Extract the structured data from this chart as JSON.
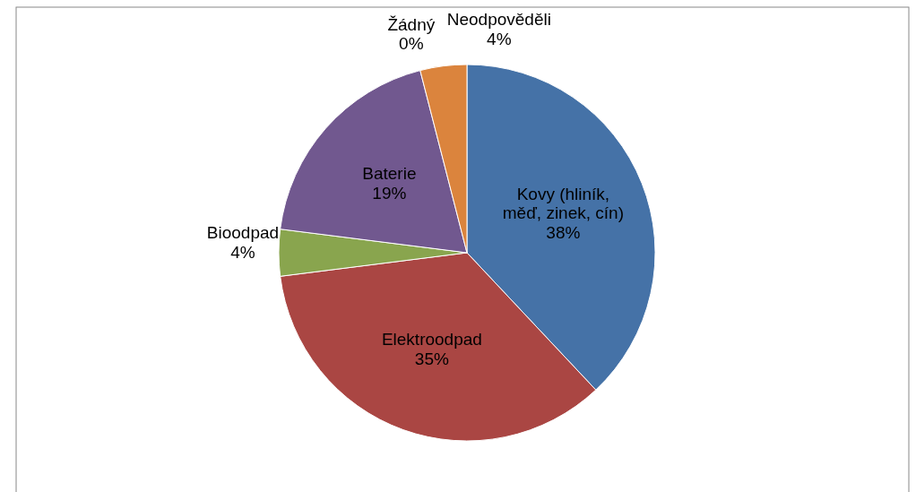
{
  "chart_data": {
    "type": "pie",
    "categories": [
      "Kovy (hliník, měď, zinek, cín)",
      "Elektroodpad",
      "Bioodpad",
      "Baterie",
      "Žádný",
      "Neodpověděli"
    ],
    "values": [
      38,
      35,
      4,
      19,
      0,
      4
    ],
    "colors": [
      "#4572a7",
      "#aa4643",
      "#89a54e",
      "#71588f",
      null,
      "#db843d"
    ],
    "value_labels": [
      "38%",
      "35%",
      "4%",
      "19%",
      "0%",
      "4%"
    ]
  }
}
